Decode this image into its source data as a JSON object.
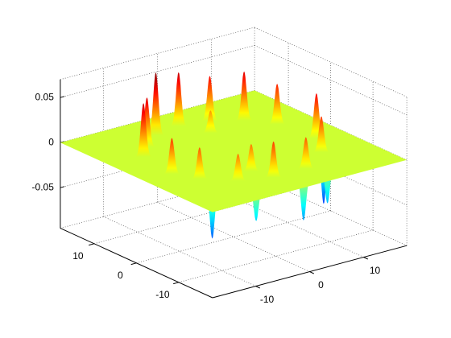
{
  "chart_data": {
    "type": "surface3d",
    "xlim": [
      -18,
      18
    ],
    "ylim": [
      -18,
      18
    ],
    "zlim": [
      -0.095,
      0.07
    ],
    "xticks": [
      -10,
      0,
      10
    ],
    "yticks": [
      -10,
      0,
      10
    ],
    "zticks": [
      -0.05,
      0,
      0.05
    ],
    "grid": true,
    "colormap": "jet",
    "x": [
      -12,
      -9,
      -13,
      -5,
      0,
      5,
      9,
      12,
      13,
      10,
      4,
      -2,
      -7,
      -11,
      2,
      -3,
      -11,
      -6,
      2,
      8,
      12
    ],
    "y": [
      6,
      9,
      -2,
      12,
      13,
      12,
      9,
      5,
      -3,
      -8,
      -12,
      -12,
      -10,
      -6,
      8,
      -8,
      -9,
      -13,
      -14,
      -12,
      -6
    ],
    "z": [
      0.06,
      0.055,
      0.04,
      0.07,
      0.06,
      0.05,
      0.055,
      0.045,
      0.05,
      0.04,
      0.035,
      0.04,
      0.03,
      0.035,
      0.025,
      0.03,
      -0.06,
      -0.04,
      -0.05,
      -0.045,
      -0.065
    ]
  }
}
